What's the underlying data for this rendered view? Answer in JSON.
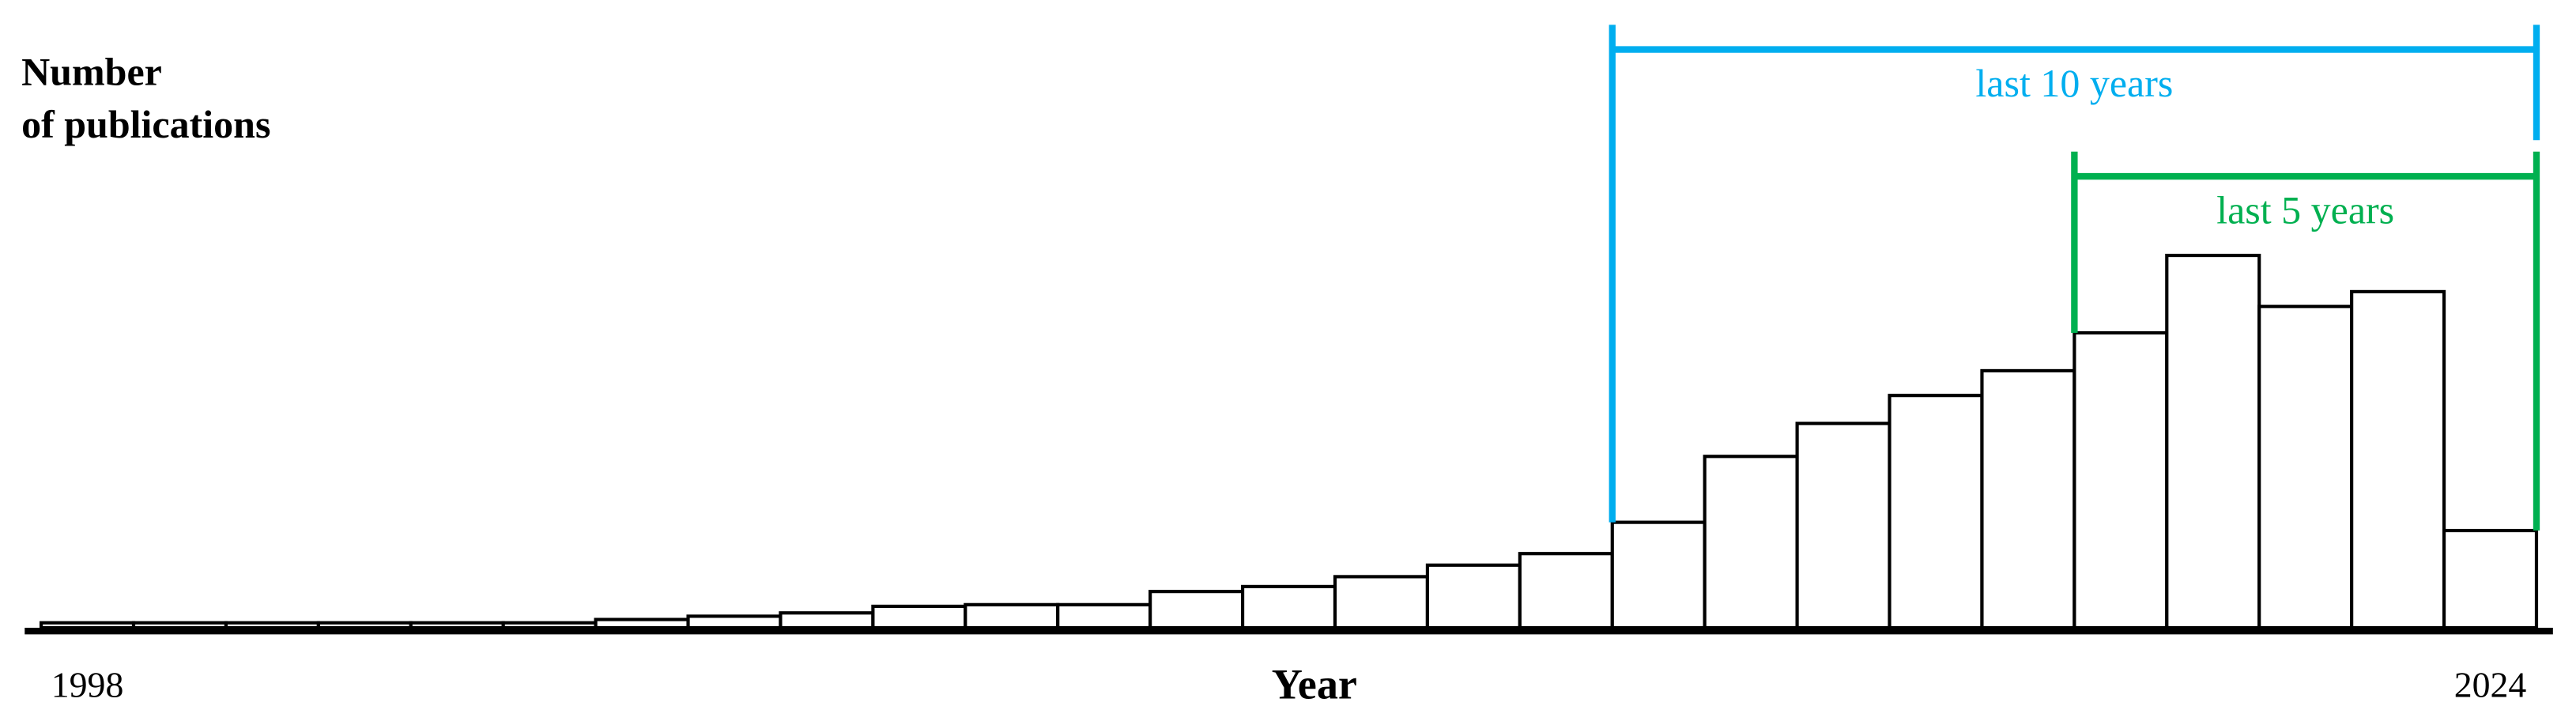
{
  "chart_data": {
    "type": "bar",
    "y_label": [
      "Number",
      "of publications"
    ],
    "x_label": "Year",
    "categories": [
      "1998",
      null,
      null,
      null,
      null,
      null,
      null,
      null,
      null,
      null,
      null,
      null,
      null,
      null,
      null,
      null,
      null,
      null,
      null,
      null,
      null,
      null,
      null,
      null,
      null,
      null,
      "2024"
    ],
    "values": [
      3,
      3,
      3,
      3,
      3,
      3,
      5,
      7,
      9,
      13,
      14,
      14,
      22,
      25,
      31,
      38,
      45,
      64,
      104,
      124,
      141,
      156,
      179,
      226,
      195,
      204,
      59
    ],
    "color": "#ffffff",
    "edge_color": "#000000",
    "annotations": [
      {
        "text": "last 10 years",
        "color": "#00aeef"
      },
      {
        "text": "last 5 years",
        "color": "#00b050"
      }
    ]
  }
}
